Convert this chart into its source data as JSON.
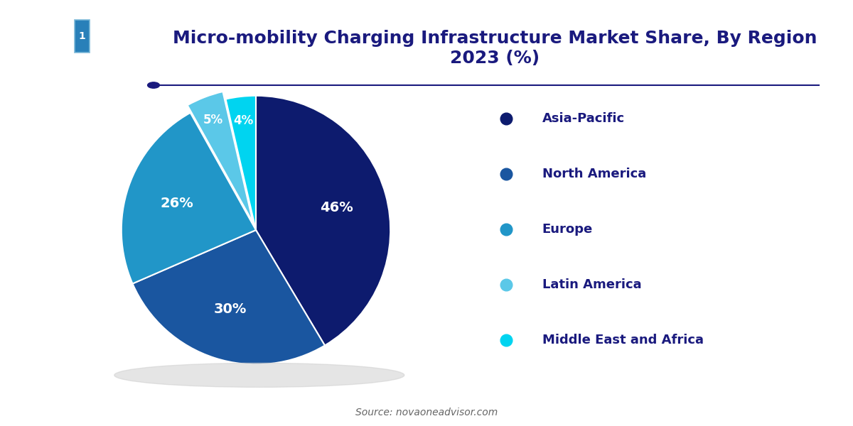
{
  "title": "Micro-mobility Charging Infrastructure Market Share, By Region\n2023 (%)",
  "title_color": "#1a1a7e",
  "title_fontsize": 18,
  "labels": [
    "Asia-Pacific",
    "North America",
    "Europe",
    "Latin America",
    "Middle East and Africa"
  ],
  "values": [
    46,
    30,
    26,
    5,
    4
  ],
  "colors": [
    "#0d1b6e",
    "#1a56a0",
    "#2196c8",
    "#5bc8e8",
    "#00d4f0"
  ],
  "explode": [
    0,
    0,
    0,
    0.06,
    0
  ],
  "pct_labels": [
    "46%",
    "30%",
    "26%",
    "5%",
    "4%"
  ],
  "legend_label_color": "#1a1a7e",
  "source_text": "Source: novaoneadvisor.com",
  "source_color": "#666666",
  "line_color": "#1a1a7e",
  "bg_color": "#ffffff",
  "logo_bg": "#1a3a6e",
  "logo_highlight": "#2980b9"
}
